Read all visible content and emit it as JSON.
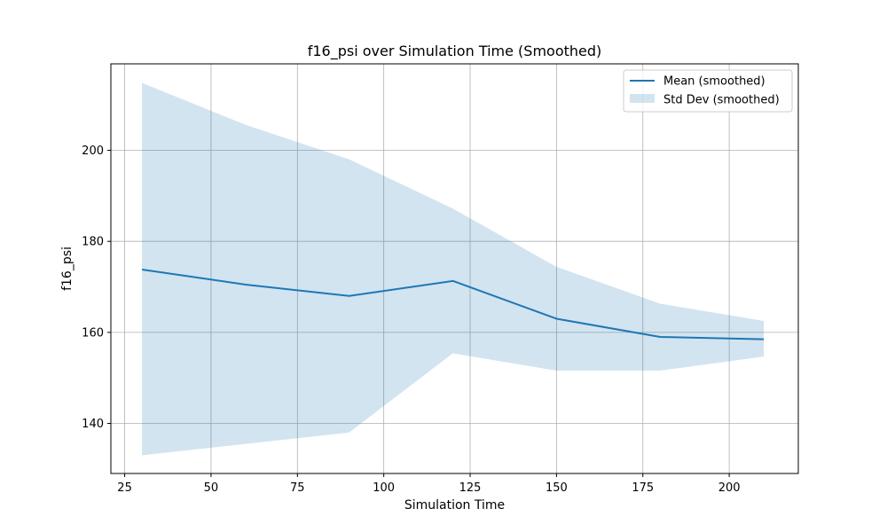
{
  "chart_data": {
    "type": "line",
    "title": "f16_psi over Simulation Time (Smoothed)",
    "xlabel": "Simulation Time",
    "ylabel": "f16_psi",
    "xlim": [
      21,
      220
    ],
    "ylim": [
      129,
      219
    ],
    "xticks": [
      25,
      50,
      75,
      100,
      125,
      150,
      175,
      200
    ],
    "yticks": [
      140,
      160,
      180,
      200
    ],
    "grid": true,
    "legend_position": "top-right",
    "x": [
      30,
      60,
      90,
      120,
      150,
      180,
      210
    ],
    "series": [
      {
        "name": "Mean (smoothed)",
        "kind": "line",
        "color": "#1f77b4",
        "values": [
          173.8,
          170.5,
          168.0,
          171.3,
          163.0,
          159.0,
          158.5
        ]
      },
      {
        "name": "Std Dev (smoothed)",
        "kind": "band",
        "color": "#1f77b4",
        "upper": [
          214.8,
          205.6,
          198.0,
          187.2,
          174.4,
          166.3,
          162.5
        ],
        "lower": [
          133.0,
          135.5,
          138.0,
          155.4,
          151.6,
          151.6,
          154.7
        ]
      }
    ]
  }
}
